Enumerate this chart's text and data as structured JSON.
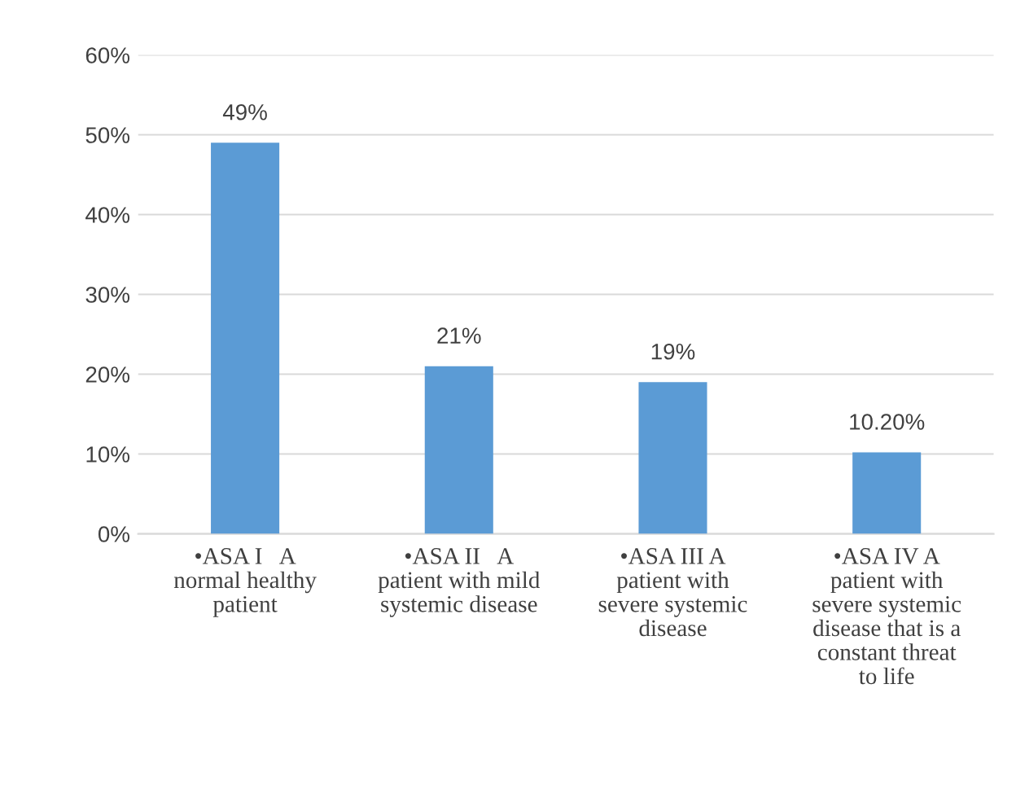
{
  "chart_data": {
    "type": "bar",
    "categories": [
      "•ASA I   A\nnormal healthy\npatient",
      "•ASA II   A\npatient with mild\nsystemic disease",
      "•ASA III A\npatient with\nsevere systemic\ndisease",
      "•ASA IV A\npatient with\nsevere systemic\ndisease that is a\nconstant threat\nto life"
    ],
    "values": [
      49,
      21,
      19,
      10.2
    ],
    "value_labels": [
      "49%",
      "21%",
      "19%",
      "10.20%"
    ],
    "color": "#5b9bd5",
    "ylim": [
      0,
      60
    ],
    "yticks": [
      {
        "value": 0,
        "label": "0%"
      },
      {
        "value": 10,
        "label": "10%"
      },
      {
        "value": 20,
        "label": "20%"
      },
      {
        "value": 30,
        "label": "30%"
      },
      {
        "value": 40,
        "label": "40%"
      },
      {
        "value": 50,
        "label": "50%"
      },
      {
        "value": 60,
        "label": "60%"
      }
    ],
    "grid": "y"
  }
}
